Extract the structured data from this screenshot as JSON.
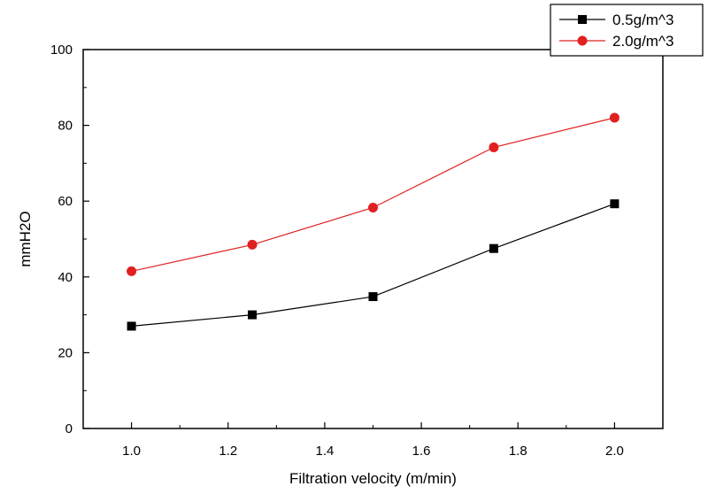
{
  "chart_data": {
    "type": "line",
    "title": "",
    "xlabel": "Filtration velocity (m/min)",
    "ylabel": "mmH2O",
    "xlim": [
      0.9,
      2.1
    ],
    "ylim": [
      0,
      100
    ],
    "xticks": [
      1.0,
      1.2,
      1.4,
      1.6,
      1.8,
      2.0
    ],
    "xtick_labels": [
      "1.0",
      "1.2",
      "1.4",
      "1.6",
      "1.8",
      "2.0"
    ],
    "yticks": [
      0,
      20,
      40,
      60,
      80,
      100
    ],
    "ytick_labels": [
      "0",
      "20",
      "40",
      "60",
      "80",
      "100"
    ],
    "grid": false,
    "legend_position": "top-right",
    "x": [
      1.0,
      1.25,
      1.5,
      1.75,
      2.0
    ],
    "series": [
      {
        "name": "0.5g/m^3",
        "values": [
          27,
          30,
          34.8,
          47.5,
          59.3
        ],
        "color": "#000000",
        "marker": "square"
      },
      {
        "name": "2.0g/m^3",
        "values": [
          41.5,
          48.5,
          58.3,
          74.2,
          82
        ],
        "color": "#e02020",
        "marker": "circle"
      }
    ]
  }
}
